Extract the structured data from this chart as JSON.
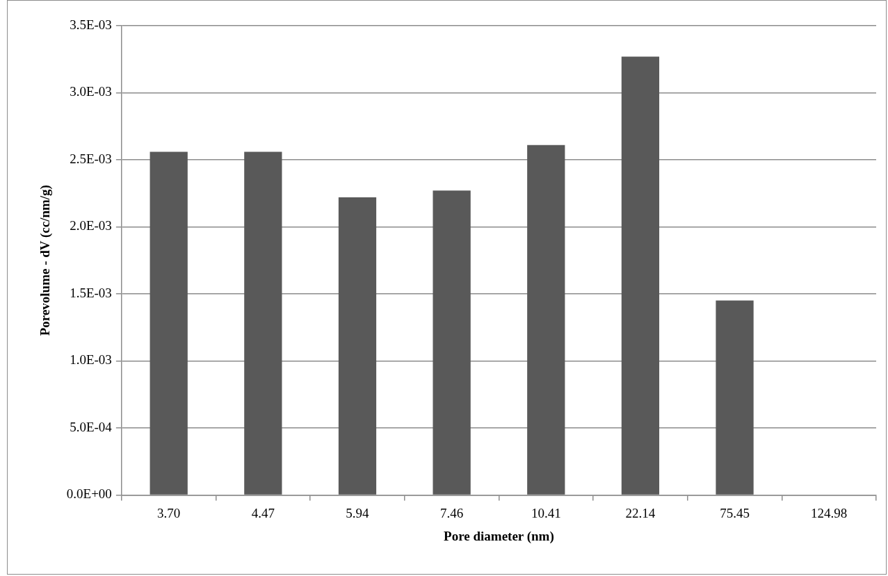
{
  "chart_data": {
    "type": "bar",
    "xlabel": "Pore diameter (nm)",
    "ylabel": "Porevolume - dV (cc/nm/g)",
    "categories": [
      "3.70",
      "4.47",
      "5.94",
      "7.46",
      "10.41",
      "22.14",
      "75.45",
      "124.98"
    ],
    "values": [
      0.00256,
      0.00256,
      0.00222,
      0.00227,
      0.00261,
      0.00327,
      0.00145,
      0
    ],
    "color": "#595959",
    "ylim": [
      0,
      0.0035
    ],
    "yticks": [
      {
        "value": 0,
        "label": "0.0E+00"
      },
      {
        "value": 0.0005,
        "label": "5.0E-04"
      },
      {
        "value": 0.001,
        "label": "1.0E-03"
      },
      {
        "value": 0.0015,
        "label": "1.5E-03"
      },
      {
        "value": 0.002,
        "label": "2.0E-03"
      },
      {
        "value": 0.0025,
        "label": "2.5E-03"
      },
      {
        "value": 0.003,
        "label": "3.0E-03"
      },
      {
        "value": 0.0035,
        "label": "3.5E-03"
      }
    ],
    "grid": "y"
  }
}
